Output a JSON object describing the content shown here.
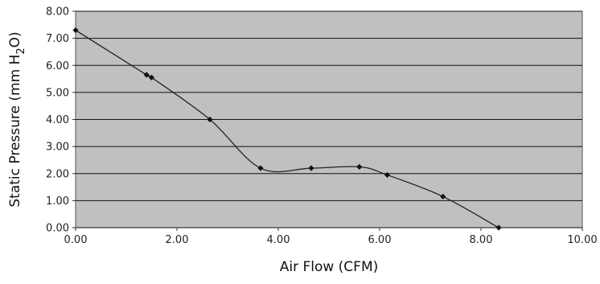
{
  "chart_data": {
    "type": "line",
    "title": "",
    "xlabel": "Air Flow (CFM)",
    "ylabel": "Static Pressure (mm H",
    "ylabel_sub": "2",
    "ylabel_tail": "O)",
    "xlim": [
      0,
      10
    ],
    "ylim": [
      0,
      8
    ],
    "x_ticks": [
      "0.00",
      "2.00",
      "4.00",
      "6.00",
      "8.00",
      "10.00"
    ],
    "y_ticks": [
      "0.00",
      "1.00",
      "2.00",
      "3.00",
      "4.00",
      "5.00",
      "6.00",
      "7.00",
      "8.00"
    ],
    "grid": "horizontal",
    "plot_background": "#c0c0c0",
    "line_color": "#222222",
    "series": [
      {
        "x": [
          0.0,
          1.4,
          1.5,
          2.65,
          3.65,
          4.65,
          5.6,
          6.15,
          7.25,
          8.35
        ],
        "y": [
          7.3,
          5.65,
          5.55,
          4.0,
          2.2,
          2.2,
          2.25,
          1.95,
          1.15,
          0.0
        ]
      }
    ]
  }
}
